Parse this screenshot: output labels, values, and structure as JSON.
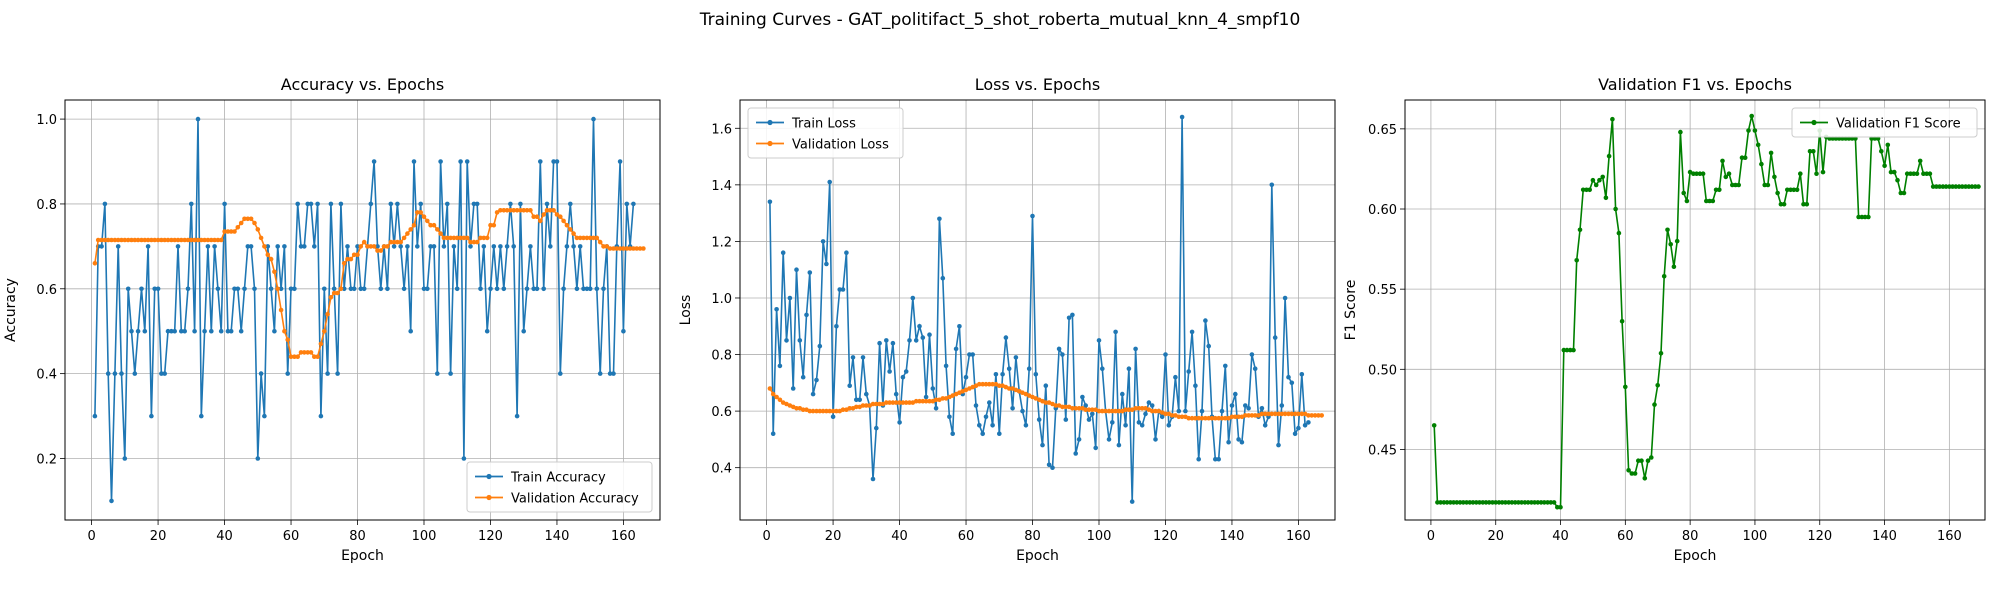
{
  "suptitle": "Training Curves - GAT_politifact_5_shot_roberta_mutual_knn_4_smpf10",
  "colors": {
    "blue": "#1f77b4",
    "orange": "#ff7f0e",
    "green": "#008000",
    "grid": "#b0b0b0"
  },
  "chart_data": [
    {
      "type": "line",
      "title": "Accuracy vs. Epochs",
      "xlabel": "Epoch",
      "ylabel": "Accuracy",
      "xlim": [
        -8,
        171
      ],
      "ylim": [
        0.055,
        1.045
      ],
      "xticks": [
        0,
        20,
        40,
        60,
        80,
        100,
        120,
        140,
        160
      ],
      "yticks": [
        0.2,
        0.4,
        0.6,
        0.8,
        1.0
      ],
      "ytick_labels": [
        "0.2",
        "0.4",
        "0.6",
        "0.8",
        "1.0"
      ],
      "grid": true,
      "legend_position": "lower right",
      "series": [
        {
          "name": "Train Accuracy",
          "color": "#1f77b4",
          "values": [
            0.3,
            0.7,
            0.7,
            0.8,
            0.4,
            0.1,
            0.4,
            0.7,
            0.4,
            0.2,
            0.6,
            0.5,
            0.4,
            0.5,
            0.6,
            0.5,
            0.7,
            0.3,
            0.6,
            0.6,
            0.4,
            0.4,
            0.5,
            0.5,
            0.5,
            0.7,
            0.5,
            0.5,
            0.6,
            0.8,
            0.5,
            1.0,
            0.3,
            0.5,
            0.7,
            0.5,
            0.7,
            0.6,
            0.5,
            0.8,
            0.5,
            0.5,
            0.6,
            0.6,
            0.5,
            0.6,
            0.7,
            0.7,
            0.6,
            0.2,
            0.4,
            0.3,
            0.7,
            0.6,
            0.5,
            0.7,
            0.6,
            0.7,
            0.4,
            0.6,
            0.6,
            0.8,
            0.7,
            0.7,
            0.8,
            0.8,
            0.7,
            0.8,
            0.3,
            0.6,
            0.4,
            0.8,
            0.6,
            0.4,
            0.8,
            0.6,
            0.7,
            0.6,
            0.6,
            0.7,
            0.6,
            0.6,
            0.7,
            0.8,
            0.9,
            0.7,
            0.6,
            0.7,
            0.6,
            0.8,
            0.7,
            0.8,
            0.7,
            0.6,
            0.7,
            0.5,
            0.9,
            0.7,
            0.8,
            0.6,
            0.6,
            0.7,
            0.7,
            0.4,
            0.9,
            0.7,
            0.8,
            0.4,
            0.7,
            0.6,
            0.9,
            0.2,
            0.9,
            0.7,
            0.8,
            0.8,
            0.6,
            0.7,
            0.5,
            0.6,
            0.7,
            0.6,
            0.7,
            0.6,
            0.7,
            0.8,
            0.7,
            0.3,
            0.8,
            0.5,
            0.6,
            0.7,
            0.6,
            0.6,
            0.9,
            0.6,
            0.8,
            0.7,
            0.9,
            0.9,
            0.4,
            0.6,
            0.7,
            0.8,
            0.7,
            0.6,
            0.7,
            0.6,
            0.6,
            0.6,
            1.0,
            0.6,
            0.4,
            0.6,
            0.7,
            0.4,
            0.4,
            0.7,
            0.9,
            0.5,
            0.8,
            0.7,
            0.8
          ]
        },
        {
          "name": "Validation Accuracy",
          "color": "#ff7f0e",
          "values": [
            0.66,
            0.715,
            0.715,
            0.715,
            0.715,
            0.715,
            0.715,
            0.715,
            0.715,
            0.715,
            0.715,
            0.715,
            0.715,
            0.715,
            0.715,
            0.715,
            0.715,
            0.715,
            0.715,
            0.715,
            0.715,
            0.715,
            0.715,
            0.715,
            0.715,
            0.715,
            0.715,
            0.715,
            0.715,
            0.715,
            0.715,
            0.715,
            0.715,
            0.715,
            0.715,
            0.715,
            0.715,
            0.715,
            0.715,
            0.735,
            0.735,
            0.735,
            0.735,
            0.745,
            0.755,
            0.765,
            0.765,
            0.765,
            0.755,
            0.74,
            0.72,
            0.7,
            0.68,
            0.67,
            0.64,
            0.6,
            0.55,
            0.5,
            0.48,
            0.44,
            0.44,
            0.44,
            0.45,
            0.45,
            0.45,
            0.45,
            0.44,
            0.44,
            0.47,
            0.5,
            0.54,
            0.58,
            0.59,
            0.59,
            0.6,
            0.66,
            0.67,
            0.67,
            0.68,
            0.68,
            0.7,
            0.71,
            0.7,
            0.7,
            0.7,
            0.69,
            0.69,
            0.7,
            0.7,
            0.71,
            0.71,
            0.71,
            0.71,
            0.72,
            0.73,
            0.74,
            0.75,
            0.78,
            0.78,
            0.77,
            0.76,
            0.75,
            0.75,
            0.74,
            0.73,
            0.72,
            0.72,
            0.72,
            0.72,
            0.72,
            0.72,
            0.72,
            0.72,
            0.71,
            0.71,
            0.71,
            0.72,
            0.72,
            0.72,
            0.75,
            0.75,
            0.78,
            0.785,
            0.785,
            0.785,
            0.785,
            0.785,
            0.785,
            0.785,
            0.785,
            0.785,
            0.785,
            0.77,
            0.77,
            0.76,
            0.775,
            0.785,
            0.785,
            0.785,
            0.775,
            0.77,
            0.76,
            0.75,
            0.74,
            0.73,
            0.72,
            0.72,
            0.72,
            0.72,
            0.72,
            0.72,
            0.72,
            0.71,
            0.7,
            0.7,
            0.695,
            0.695,
            0.695,
            0.695,
            0.695,
            0.695,
            0.695,
            0.695,
            0.695,
            0.695,
            0.695
          ]
        }
      ]
    },
    {
      "type": "line",
      "title": "Loss vs. Epochs",
      "xlabel": "Epoch",
      "ylabel": "Loss",
      "xlim": [
        -8,
        171
      ],
      "ylim": [
        0.215,
        1.7
      ],
      "xticks": [
        0,
        20,
        40,
        60,
        80,
        100,
        120,
        140,
        160
      ],
      "yticks": [
        0.4,
        0.6,
        0.8,
        1.0,
        1.2,
        1.4,
        1.6
      ],
      "ytick_labels": [
        "0.4",
        "0.6",
        "0.8",
        "1.0",
        "1.2",
        "1.4",
        "1.6"
      ],
      "grid": true,
      "legend_position": "upper left",
      "series": [
        {
          "name": "Train Loss",
          "color": "#1f77b4",
          "values": [
            1.34,
            0.52,
            0.96,
            0.76,
            1.16,
            0.85,
            1.0,
            0.68,
            1.1,
            0.85,
            0.72,
            0.94,
            1.09,
            0.66,
            0.71,
            0.83,
            1.2,
            1.12,
            1.41,
            0.58,
            0.9,
            1.03,
            1.03,
            1.16,
            0.69,
            0.79,
            0.64,
            0.64,
            0.79,
            0.66,
            0.62,
            0.36,
            0.54,
            0.84,
            0.62,
            0.85,
            0.74,
            0.84,
            0.66,
            0.56,
            0.72,
            0.74,
            0.85,
            1.0,
            0.85,
            0.9,
            0.86,
            0.65,
            0.87,
            0.68,
            0.61,
            1.28,
            1.07,
            0.76,
            0.58,
            0.52,
            0.82,
            0.9,
            0.66,
            0.72,
            0.8,
            0.8,
            0.62,
            0.55,
            0.52,
            0.58,
            0.63,
            0.55,
            0.73,
            0.52,
            0.73,
            0.86,
            0.75,
            0.61,
            0.79,
            0.67,
            0.6,
            0.55,
            0.75,
            1.29,
            0.73,
            0.57,
            0.48,
            0.69,
            0.41,
            0.4,
            0.61,
            0.82,
            0.8,
            0.57,
            0.93,
            0.94,
            0.45,
            0.5,
            0.65,
            0.62,
            0.57,
            0.59,
            0.47,
            0.85,
            0.75,
            0.6,
            0.5,
            0.56,
            0.88,
            0.48,
            0.66,
            0.55,
            0.75,
            0.28,
            0.82,
            0.56,
            0.55,
            0.59,
            0.63,
            0.62,
            0.5,
            0.6,
            0.58,
            0.8,
            0.55,
            0.58,
            0.72,
            0.6,
            1.64,
            0.6,
            0.74,
            0.88,
            0.69,
            0.43,
            0.6,
            0.92,
            0.83,
            0.58,
            0.43,
            0.43,
            0.6,
            0.76,
            0.49,
            0.62,
            0.66,
            0.5,
            0.49,
            0.62,
            0.61,
            0.8,
            0.75,
            0.58,
            0.61,
            0.55,
            0.58,
            1.4,
            0.86,
            0.48,
            0.62,
            1.0,
            0.72,
            0.7,
            0.52,
            0.54,
            0.73,
            0.55,
            0.56
          ]
        },
        {
          "name": "Validation Loss",
          "color": "#ff7f0e",
          "values": [
            0.68,
            0.66,
            0.65,
            0.64,
            0.63,
            0.625,
            0.62,
            0.615,
            0.61,
            0.61,
            0.605,
            0.605,
            0.6,
            0.6,
            0.6,
            0.6,
            0.6,
            0.6,
            0.6,
            0.6,
            0.6,
            0.6,
            0.605,
            0.605,
            0.61,
            0.61,
            0.615,
            0.615,
            0.62,
            0.62,
            0.62,
            0.625,
            0.625,
            0.625,
            0.625,
            0.63,
            0.63,
            0.63,
            0.63,
            0.63,
            0.63,
            0.63,
            0.63,
            0.63,
            0.635,
            0.635,
            0.635,
            0.635,
            0.635,
            0.635,
            0.64,
            0.64,
            0.645,
            0.645,
            0.65,
            0.655,
            0.66,
            0.665,
            0.67,
            0.675,
            0.68,
            0.685,
            0.69,
            0.695,
            0.695,
            0.695,
            0.695,
            0.695,
            0.695,
            0.69,
            0.69,
            0.685,
            0.68,
            0.68,
            0.675,
            0.67,
            0.665,
            0.66,
            0.655,
            0.65,
            0.645,
            0.64,
            0.635,
            0.63,
            0.63,
            0.625,
            0.62,
            0.62,
            0.615,
            0.615,
            0.615,
            0.61,
            0.61,
            0.61,
            0.61,
            0.605,
            0.605,
            0.605,
            0.605,
            0.6,
            0.6,
            0.6,
            0.6,
            0.6,
            0.6,
            0.6,
            0.6,
            0.605,
            0.605,
            0.605,
            0.61,
            0.61,
            0.61,
            0.61,
            0.605,
            0.6,
            0.6,
            0.6,
            0.595,
            0.59,
            0.59,
            0.585,
            0.585,
            0.58,
            0.58,
            0.58,
            0.575,
            0.575,
            0.575,
            0.575,
            0.575,
            0.575,
            0.575,
            0.575,
            0.575,
            0.575,
            0.575,
            0.575,
            0.575,
            0.58,
            0.58,
            0.58,
            0.58,
            0.585,
            0.585,
            0.585,
            0.585,
            0.585,
            0.59,
            0.59,
            0.59,
            0.59,
            0.59,
            0.59,
            0.59,
            0.59,
            0.59,
            0.59,
            0.59,
            0.59,
            0.59,
            0.59,
            0.585,
            0.585,
            0.585,
            0.585,
            0.585
          ]
        }
      ]
    },
    {
      "type": "line",
      "title": "Validation F1 vs. Epochs",
      "xlabel": "Epoch",
      "ylabel": "F1 Score",
      "xlim": [
        -8,
        171
      ],
      "ylim": [
        0.406,
        0.668
      ],
      "xticks": [
        0,
        20,
        40,
        60,
        80,
        100,
        120,
        140,
        160
      ],
      "yticks": [
        0.45,
        0.5,
        0.55,
        0.6,
        0.65
      ],
      "ytick_labels": [
        "0.45",
        "0.50",
        "0.55",
        "0.60",
        "0.65"
      ],
      "grid": true,
      "legend_position": "upper right",
      "series": [
        {
          "name": "Validation F1 Score",
          "color": "#008000",
          "values": [
            0.465,
            0.417,
            0.417,
            0.417,
            0.417,
            0.417,
            0.417,
            0.417,
            0.417,
            0.417,
            0.417,
            0.417,
            0.417,
            0.417,
            0.417,
            0.417,
            0.417,
            0.417,
            0.417,
            0.417,
            0.417,
            0.417,
            0.417,
            0.417,
            0.417,
            0.417,
            0.417,
            0.417,
            0.417,
            0.417,
            0.417,
            0.417,
            0.417,
            0.417,
            0.417,
            0.417,
            0.417,
            0.417,
            0.414,
            0.414,
            0.512,
            0.512,
            0.512,
            0.512,
            0.568,
            0.587,
            0.612,
            0.612,
            0.612,
            0.618,
            0.615,
            0.618,
            0.62,
            0.607,
            0.633,
            0.656,
            0.6,
            0.585,
            0.53,
            0.489,
            0.437,
            0.435,
            0.435,
            0.443,
            0.443,
            0.432,
            0.443,
            0.445,
            0.478,
            0.49,
            0.51,
            0.558,
            0.587,
            0.578,
            0.564,
            0.58,
            0.648,
            0.61,
            0.605,
            0.623,
            0.622,
            0.622,
            0.622,
            0.622,
            0.605,
            0.605,
            0.605,
            0.612,
            0.612,
            0.63,
            0.62,
            0.622,
            0.615,
            0.615,
            0.615,
            0.632,
            0.632,
            0.649,
            0.658,
            0.649,
            0.64,
            0.628,
            0.615,
            0.615,
            0.635,
            0.62,
            0.61,
            0.603,
            0.603,
            0.612,
            0.612,
            0.612,
            0.612,
            0.622,
            0.603,
            0.603,
            0.636,
            0.636,
            0.622,
            0.649,
            0.623,
            0.645,
            0.644,
            0.644,
            0.644,
            0.644,
            0.644,
            0.644,
            0.644,
            0.644,
            0.644,
            0.595,
            0.595,
            0.595,
            0.595,
            0.644,
            0.644,
            0.644,
            0.636,
            0.627,
            0.64,
            0.623,
            0.623,
            0.618,
            0.61,
            0.61,
            0.622,
            0.622,
            0.622,
            0.622,
            0.63,
            0.622,
            0.622,
            0.622,
            0.614,
            0.614,
            0.614,
            0.614,
            0.614,
            0.614,
            0.614,
            0.614,
            0.614,
            0.614,
            0.614,
            0.614,
            0.614,
            0.614,
            0.614
          ]
        }
      ]
    }
  ]
}
